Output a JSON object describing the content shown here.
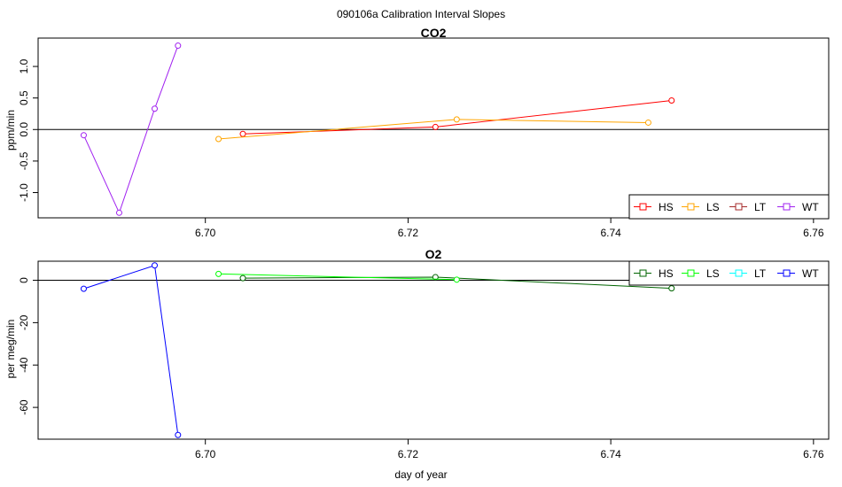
{
  "figure_title": "090106a   Calibration Interval Slopes",
  "chart_data": [
    {
      "type": "line",
      "title": "CO2",
      "xlabel": "",
      "ylabel": "ppm/min",
      "xlim": [
        6.6835,
        6.7615
      ],
      "ylim": [
        -1.4,
        1.45
      ],
      "xticks": [
        6.7,
        6.72,
        6.74,
        6.76
      ],
      "xtick_labels": [
        "6.70",
        "6.72",
        "6.74",
        "6.76"
      ],
      "yticks": [
        -1.0,
        -0.5,
        0.0,
        0.5,
        1.0
      ],
      "ytick_labels": [
        "-1.0",
        "-0.5",
        "0.0",
        "0.5",
        "1.0"
      ],
      "hline": 0,
      "legend_position": "bottom-right",
      "series": [
        {
          "name": "HS",
          "color": "#ff0000",
          "x": [
            6.7037,
            6.7227,
            6.746
          ],
          "y": [
            -0.07,
            0.04,
            0.46
          ]
        },
        {
          "name": "LS",
          "color": "#ffa500",
          "x": [
            6.7013,
            6.7248,
            6.7437
          ],
          "y": [
            -0.15,
            0.16,
            0.11
          ]
        },
        {
          "name": "LT",
          "color": "#a52a2a",
          "x": [],
          "y": []
        },
        {
          "name": "WT",
          "color": "#a020f0",
          "x": [
            6.688,
            6.6915,
            6.695,
            6.6973
          ],
          "y": [
            -0.09,
            -1.32,
            0.33,
            1.33
          ]
        }
      ]
    },
    {
      "type": "line",
      "title": "O2",
      "xlabel": "day of year",
      "ylabel": "per meg/min",
      "xlim": [
        6.6835,
        6.7615
      ],
      "ylim": [
        -75,
        9
      ],
      "xticks": [
        6.7,
        6.72,
        6.74,
        6.76
      ],
      "xtick_labels": [
        "6.70",
        "6.72",
        "6.74",
        "6.76"
      ],
      "yticks": [
        -60,
        -40,
        -20,
        0
      ],
      "ytick_labels": [
        "-60",
        "-40",
        "-20",
        "0"
      ],
      "hline": 0,
      "legend_position": "top-right",
      "series": [
        {
          "name": "HS",
          "color": "#006400",
          "x": [
            6.7037,
            6.7227,
            6.746
          ],
          "y": [
            1.0,
            1.5,
            -3.8
          ]
        },
        {
          "name": "LS",
          "color": "#00ff00",
          "x": [
            6.7013,
            6.7248
          ],
          "y": [
            3.0,
            0.3
          ]
        },
        {
          "name": "LT",
          "color": "#00ffff",
          "x": [],
          "y": []
        },
        {
          "name": "WT",
          "color": "#0000ff",
          "x": [
            6.688,
            6.695,
            6.6973
          ],
          "y": [
            -4.0,
            7.0,
            -73.0
          ]
        }
      ]
    }
  ]
}
